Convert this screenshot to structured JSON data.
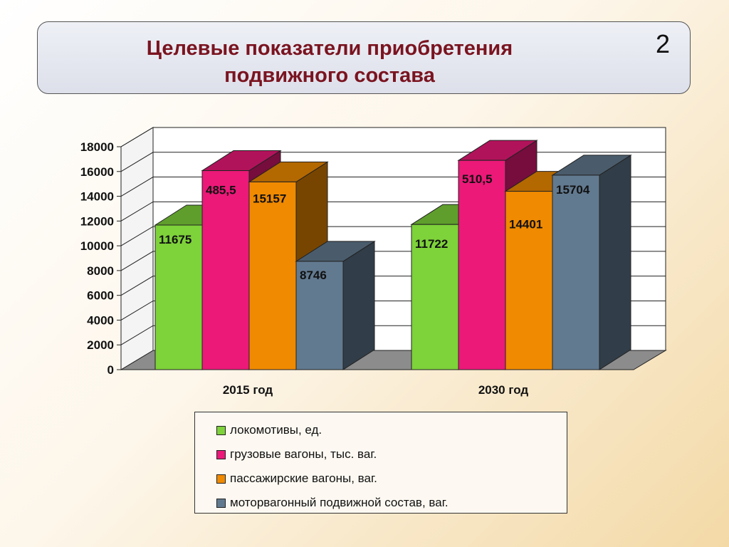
{
  "header": {
    "title_line1": "Целевые показатели приобретения",
    "title_line2": "подвижного состава",
    "slide_number": "2"
  },
  "chart_data": {
    "type": "bar",
    "style": "3d-clustered",
    "categories": [
      "2015 год",
      "2030 год"
    ],
    "ylim": [
      0,
      18000
    ],
    "yticks": [
      "0",
      "2000",
      "4000",
      "6000",
      "8000",
      "10000",
      "12000",
      "14000",
      "16000",
      "18000"
    ],
    "series": [
      {
        "name": "локомотивы, ед.",
        "color": "#7ed23a",
        "values": [
          11675,
          11722
        ],
        "labels": [
          "11675",
          "11722"
        ]
      },
      {
        "name": "грузовые вагоны, тыс. ваг.",
        "color": "#ec1979",
        "values": [
          485.5,
          510.5
        ],
        "labels": [
          "485,5",
          "510,5"
        ]
      },
      {
        "name": "пассажирские вагоны, ваг.",
        "color": "#f08a00",
        "values": [
          15157,
          14401
        ],
        "labels": [
          "15157",
          "14401"
        ]
      },
      {
        "name": "моторвагонный подвижной состав, ваг.",
        "color": "#627a90",
        "values": [
          8746,
          15704
        ],
        "labels": [
          "8746",
          "15704"
        ]
      }
    ],
    "legend_position": "bottom",
    "grid": true
  }
}
